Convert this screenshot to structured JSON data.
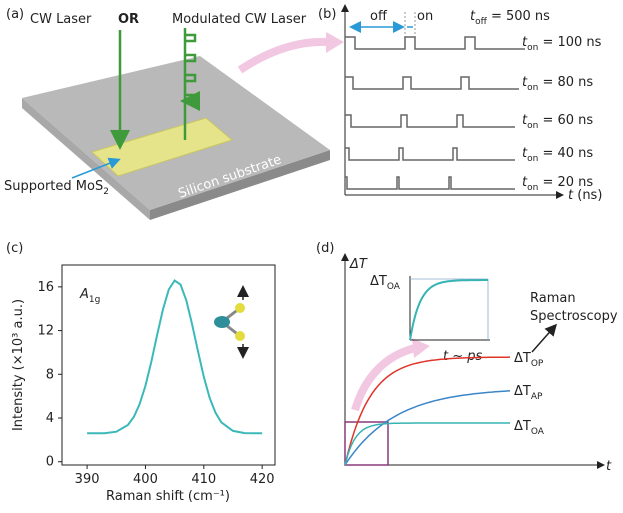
{
  "panel_a": {
    "label": "(a)",
    "laser1": "CW Laser",
    "or": "OR",
    "laser2": "Modulated CW Laser",
    "sample": {
      "text": "Supported MoS",
      "sub": "2"
    },
    "substrate": "Silicon substrate"
  },
  "panel_b": {
    "label": "(b)",
    "off": "off",
    "on": "on",
    "t_off": {
      "sym": "t",
      "sub": "off",
      "rest": " = 500 ns"
    },
    "rows": [
      {
        "sym": "t",
        "sub": "on",
        "rest": " = 100 ns"
      },
      {
        "sym": "t",
        "sub": "on",
        "rest": " = 80 ns"
      },
      {
        "sym": "t",
        "sub": "on",
        "rest": " = 60 ns"
      },
      {
        "sym": "t",
        "sub": "on",
        "rest": " = 40 ns"
      },
      {
        "sym": "t",
        "sub": "on",
        "rest": " = 20 ns"
      }
    ],
    "x_axis": {
      "sym": "t",
      "rest": " (ns)"
    }
  },
  "panel_d": {
    "label": "(d)",
    "y_axis": "ΔT",
    "x_axis": "t",
    "inset_y": {
      "sym": "ΔT",
      "sub": "OA"
    },
    "inset_x": "t ~ ps",
    "raman": [
      "Raman",
      "Spectroscopy"
    ],
    "curves": [
      {
        "sym": "ΔT",
        "sub": "OP",
        "color": "#e0342a"
      },
      {
        "sym": "ΔT",
        "sub": "AP",
        "color": "#3a86c8"
      },
      {
        "sym": "ΔT",
        "sub": "OA",
        "color": "#36b3b3"
      }
    ]
  },
  "chart_data": {
    "type": "line",
    "label": "(c)",
    "annotation": {
      "text": "A",
      "sub": "1g"
    },
    "xlabel": "Raman shift (cm⁻¹)",
    "ylabel": "Intensity (×10³ a.u.)",
    "x": [
      390,
      393,
      395,
      397,
      398,
      399,
      400,
      401,
      402,
      403,
      404,
      405,
      406,
      407,
      408,
      409,
      410,
      411,
      412,
      413,
      415,
      417,
      420
    ],
    "values": [
      2.6,
      2.6,
      2.75,
      3.36,
      4.09,
      5.26,
      6.94,
      9.13,
      11.59,
      13.96,
      15.76,
      16.58,
      16.22,
      14.77,
      12.57,
      10.1,
      7.77,
      5.86,
      4.49,
      3.61,
      2.82,
      2.62,
      2.6
    ],
    "color": "#3bb8b8",
    "xlim": [
      385.7,
      422.2
    ],
    "ylim": [
      -0.3,
      18
    ],
    "xticks": [
      390,
      400,
      410,
      420
    ],
    "yticks": [
      0,
      4,
      8,
      12,
      16
    ]
  }
}
